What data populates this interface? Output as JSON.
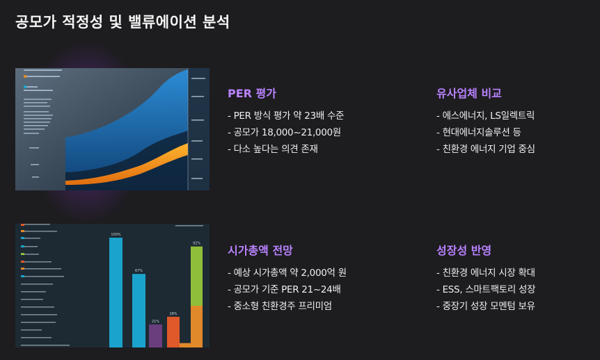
{
  "page": {
    "title": "공모가 적정성 및 밸류에이션 분석"
  },
  "colors": {
    "accent": "#b983ff",
    "background": "#1d1c1f"
  },
  "cards": [
    {
      "heading": "PER 평가",
      "bullets": [
        "- PER 방식 평가 약 23배 수준",
        "- 공모가 18,000~21,000원",
        "- 다소 높다는 의견 존재"
      ]
    },
    {
      "heading": "유사업체 비교",
      "bullets": [
        "- 에스에너지, LS일렉트릭",
        "- 현대에너지솔루션 등",
        "- 친환경 에너지 기업 중심"
      ]
    },
    {
      "heading": "시가총액 전망",
      "bullets": [
        "- 예상 시가총액 약 2,000억 원",
        "- 공모가 기준 PER 21~24배",
        "- 중소형 친환경주 프리미엄"
      ]
    },
    {
      "heading": "성장성 반영",
      "bullets": [
        "- 친환경 에너지 시장 확대",
        "- ESS, 스마트팩토리 성장",
        "- 중장기 성장 모멘텀 보유"
      ]
    }
  ],
  "thumbnails": {
    "area_chart": {
      "icon": "area-chart-image"
    },
    "bar_chart": {
      "icon": "bar-chart-image",
      "chart_data": {
        "type": "bar",
        "values": [
          100,
          67,
          21,
          28,
          4,
          92
        ],
        "value_labels": [
          "100%",
          "67%",
          "21%",
          "28%",
          "",
          "92%"
        ],
        "colors": [
          "#1aa3cc",
          "#1aa3cc",
          "#6a3d7c",
          "#e0592a",
          "#e0892a",
          "#8fbf3a"
        ]
      }
    }
  }
}
